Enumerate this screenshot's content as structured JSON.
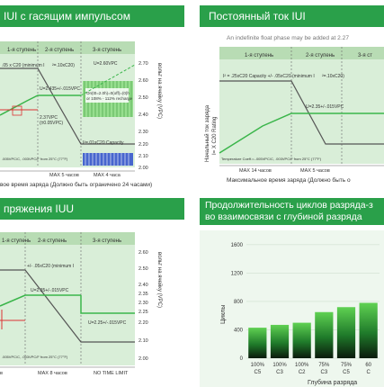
{
  "panels": {
    "tl": {
      "title": "IUI с гасящим импульсом",
      "stages": [
        "1-я ступень",
        "2-я ступень",
        "3-я ступень"
      ],
      "right_axis": "вольт на ячейку (VPC)",
      "y_ticks": [
        "2.70",
        "2.60",
        "2.50",
        "2.40",
        "2.30",
        "2.20",
        "2.10",
        "2.00"
      ],
      "annotations": {
        "current1": ".05 x C20 (minimum I",
        "current2": "²=.10xC20)",
        "v1": "U=2.435+/-.015VPC",
        "v2": "2.37VPC",
        "v3": "(±0.05VPC)",
        "v_top": "U=2.60VPC",
        "pulse": "On(t0=2.0h)=0(off)=(0)h",
        "pulse2": "or 108% - 112% recharge",
        "final_current": "I²=.01xC20 Capacity",
        "temp": ".005VPC/C, .003VPC/F from 25°C (77°F)"
      },
      "x_labels": [
        "MAX 5 часов",
        "MAX 4 часа"
      ],
      "footer": "вое время заряда (Должно быть ограничено 24 часами)"
    },
    "tr": {
      "title": "Постоянный ток IUI",
      "subtitle": "An indefinite float phase may be added at 2.27",
      "stages": [
        "1-я ступень",
        "2-я ступень",
        "3-я ст"
      ],
      "left_axis_1": "Начальный ток заряда",
      "left_axis_2": "I= X C20 Rating",
      "annotations": {
        "current": "I² = .25xC20 Capacity +/- .05xC20 (minimum I",
        "current2": "²=.10xC20)",
        "voltage": "U=2.35+/-.015VPC",
        "temp": "Temperature Coeff.=-.005VPC/C, .003VPC/F from 25°C (77°F)"
      },
      "x_labels": [
        "MAX 14 часов",
        "MAX 5 часов"
      ],
      "footer": "Максимальное время заряда (Должно быть о"
    },
    "bl": {
      "title": "пряжения IUU",
      "stages": [
        "1-я ступень",
        "2-я ступень",
        "3-я ступень"
      ],
      "right_axis": "вольт на ячейку (VPC)",
      "y_ticks": [
        "2.60",
        "2.50",
        "2.40",
        "2.35",
        "2.30",
        "2.25",
        "2.20",
        "2.10",
        "2.00"
      ],
      "annotations": {
        "current": "+/- .05xC20 (minimum I",
        "voltage": "U=2.35+/-.015VPC",
        "float": "U=2.25+/-.015VPC",
        "temp": ".005VPC/C, .003VPC/F from 25°C (77°F)"
      },
      "x_labels": [
        "MAX 8 часов",
        "NO TIME LIMIT"
      ],
      "footer_left": "в"
    },
    "br": {
      "title_line1": "Продолжительность циклов разряда-з",
      "title_line2": "во взаимосвязи с глубиной разряда",
      "colors": {
        "dark": "#0b1a0c",
        "light": "#5fd152",
        "header": "#2aa04a"
      }
    }
  },
  "chart_data": [
    {
      "type": "bar",
      "title": "Продолжительность циклов разряда-з во взаимосвязи с глубиной разряда",
      "ylabel": "Циклы",
      "xlabel": "Глубина разряда",
      "categories": [
        "100% C5",
        "100% C3",
        "100% C2",
        "75% C3",
        "75% C5",
        "60% C"
      ],
      "category_top": [
        "100%",
        "100%",
        "100%",
        "75%",
        "75%",
        "60"
      ],
      "category_bottom": [
        "C5",
        "C3",
        "C2",
        "C3",
        "C5",
        "C"
      ],
      "values": [
        430,
        470,
        500,
        650,
        720,
        780
      ],
      "y_ticks": [
        0,
        400,
        800,
        1200,
        1600
      ],
      "ylim": [
        0,
        1700
      ]
    }
  ]
}
